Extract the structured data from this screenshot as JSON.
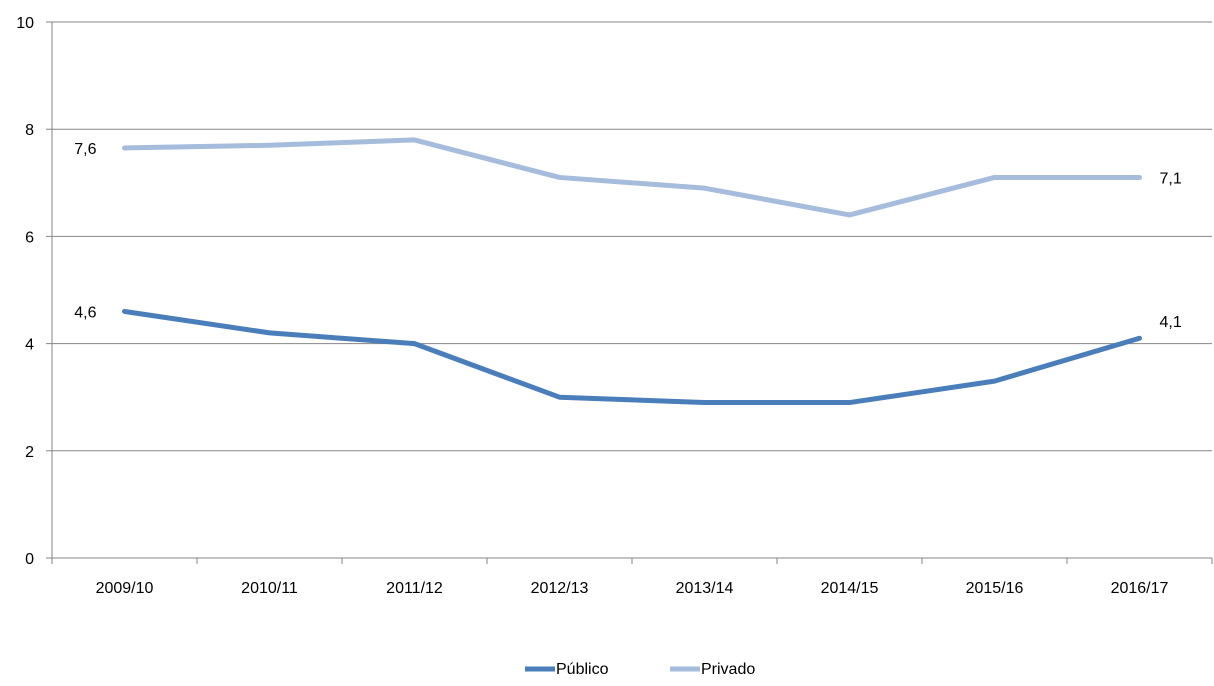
{
  "chart_data": {
    "type": "line",
    "categories": [
      "2009/10",
      "2010/11",
      "2011/12",
      "2012/13",
      "2013/14",
      "2014/15",
      "2015/16",
      "2016/17"
    ],
    "series": [
      {
        "name": "Público",
        "color": "#4a7ebb",
        "values": [
          4.6,
          4.2,
          4.0,
          3.0,
          2.9,
          2.9,
          3.3,
          4.1
        ],
        "labels": [
          {
            "index": 0,
            "text": "4,6"
          },
          {
            "index": 7,
            "text": "4,1"
          }
        ]
      },
      {
        "name": "Privado",
        "color": "#a6bcdc",
        "values": [
          7.65,
          7.7,
          7.8,
          7.1,
          6.9,
          6.4,
          7.1,
          7.1
        ],
        "labels": [
          {
            "index": 0,
            "text": "7,6"
          },
          {
            "index": 7,
            "text": "7,1"
          }
        ]
      }
    ],
    "ylim": [
      0,
      10
    ],
    "yticks": [
      "0",
      "2",
      "4",
      "6",
      "8",
      "10"
    ],
    "grid": true,
    "legend_position": "bottom-center"
  }
}
